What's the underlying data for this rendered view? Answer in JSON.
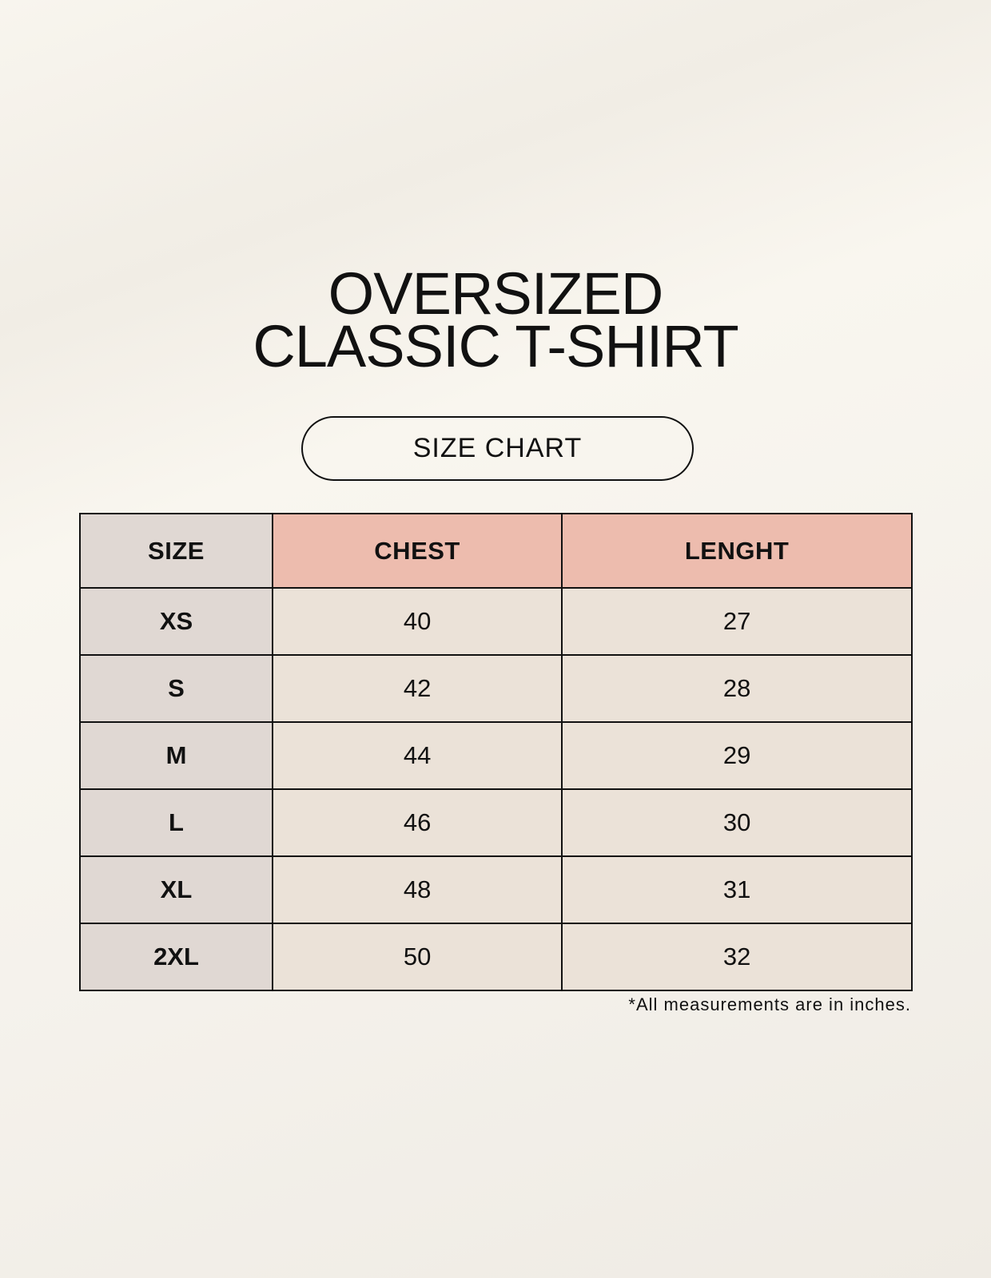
{
  "title": {
    "line1": "OVERSIZED",
    "line2": "CLASSIC T-SHIRT"
  },
  "subtitle": "SIZE CHART",
  "table": {
    "headers": [
      "SIZE",
      "CHEST",
      "LENGHT"
    ],
    "rows": [
      [
        "XS",
        "40",
        "27"
      ],
      [
        "S",
        "42",
        "28"
      ],
      [
        "M",
        "44",
        "29"
      ],
      [
        "L",
        "46",
        "30"
      ],
      [
        "XL",
        "48",
        "31"
      ],
      [
        "2XL",
        "50",
        "32"
      ]
    ]
  },
  "footnote": "*All measurements are in inches.",
  "colors": {
    "size_column": "#e0d8d3",
    "header_accent": "#edbcae",
    "cell": "#ebe2d8"
  }
}
